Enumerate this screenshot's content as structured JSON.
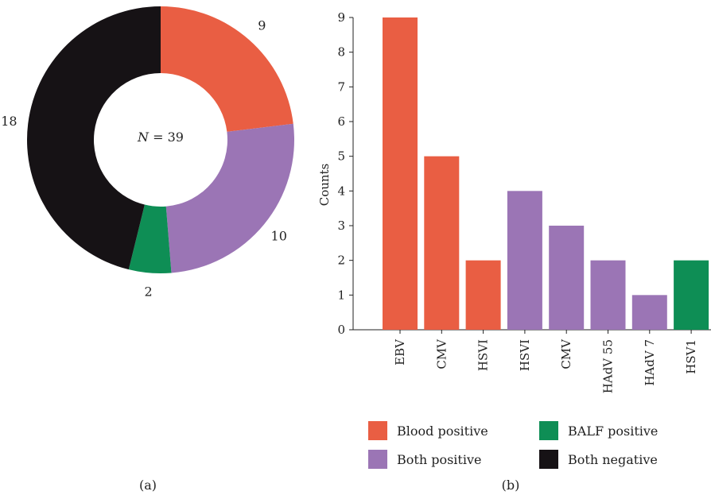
{
  "chart_data": [
    {
      "type": "pie",
      "panel_label": "(a)",
      "center_label": {
        "prefix": "N",
        "suffix": " = 39"
      },
      "slices": [
        {
          "name": "Blood positive",
          "value": 9,
          "label": "9",
          "color": "#E95E43"
        },
        {
          "name": "Both positive",
          "value": 10,
          "label": "10",
          "color": "#9B75B5"
        },
        {
          "name": "BALF positive",
          "value": 2,
          "label": "2",
          "color": "#0E8E55"
        },
        {
          "name": "Both negative",
          "value": 18,
          "label": "18",
          "color": "#161215"
        }
      ]
    },
    {
      "type": "bar",
      "panel_label": "(b)",
      "ylabel": "Counts",
      "ylim": [
        0,
        9
      ],
      "yticks": [
        "0",
        "1",
        "2",
        "3",
        "4",
        "5",
        "6",
        "7",
        "8",
        "9"
      ],
      "bars": [
        {
          "category": "EBV",
          "value": 9,
          "group": "Blood positive",
          "color": "#E95E43"
        },
        {
          "category": "CMV",
          "value": 5,
          "group": "Blood positive",
          "color": "#E95E43"
        },
        {
          "category": "HSVI",
          "value": 2,
          "group": "Blood positive",
          "color": "#E95E43"
        },
        {
          "category": "HSVI",
          "value": 4,
          "group": "Both positive",
          "color": "#9B75B5"
        },
        {
          "category": "CMV",
          "value": 3,
          "group": "Both positive",
          "color": "#9B75B5"
        },
        {
          "category": "HAdV 55",
          "value": 2,
          "group": "Both positive",
          "color": "#9B75B5"
        },
        {
          "category": "HAdV 7",
          "value": 1,
          "group": "Both positive",
          "color": "#9B75B5"
        },
        {
          "category": "HSV1",
          "value": 2,
          "group": "BALF positive",
          "color": "#0E8E55"
        }
      ],
      "legend": [
        {
          "label": "Blood positive",
          "color": "#E95E43"
        },
        {
          "label": "BALF positive",
          "color": "#0E8E55"
        },
        {
          "label": "Both positive",
          "color": "#9B75B5"
        },
        {
          "label": "Both negative",
          "color": "#161215"
        }
      ]
    }
  ]
}
